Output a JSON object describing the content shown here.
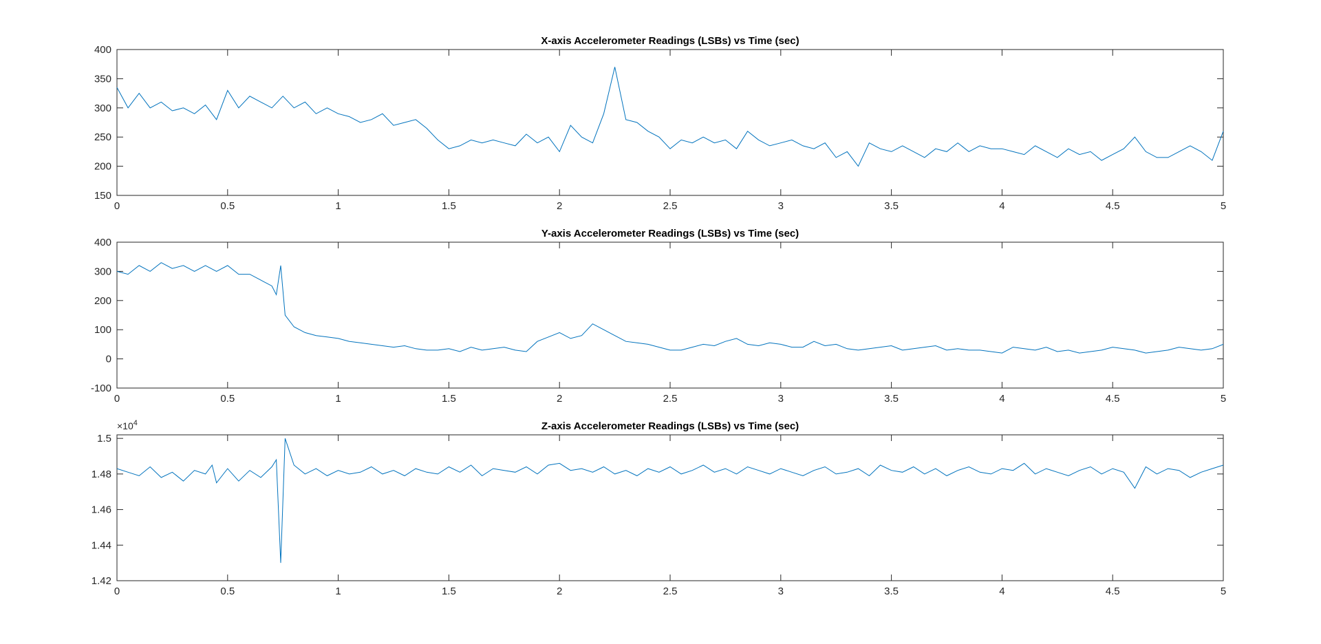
{
  "chart_data": [
    {
      "type": "line",
      "title": "X-axis Accelerometer Readings (LSBs) vs Time (sec)",
      "xlabel": "",
      "ylabel": "",
      "xlim": [
        0,
        5
      ],
      "ylim": [
        150,
        400
      ],
      "xticks": [
        0,
        0.5,
        1,
        1.5,
        2,
        2.5,
        3,
        3.5,
        4,
        4.5,
        5
      ],
      "xtick_labels": [
        "0",
        "0.5",
        "1",
        "1.5",
        "2",
        "2.5",
        "3",
        "3.5",
        "4",
        "4.5",
        "5"
      ],
      "yticks": [
        150,
        200,
        250,
        300,
        350,
        400
      ],
      "ytick_labels": [
        "150",
        "200",
        "250",
        "300",
        "350",
        "400"
      ],
      "grid": false,
      "color": "#0072BD",
      "series": [
        {
          "x": [
            0,
            0.05,
            0.1,
            0.15,
            0.2,
            0.25,
            0.3,
            0.35,
            0.4,
            0.45,
            0.5,
            0.55,
            0.6,
            0.65,
            0.7,
            0.75,
            0.8,
            0.85,
            0.9,
            0.95,
            1.0,
            1.05,
            1.1,
            1.15,
            1.2,
            1.25,
            1.3,
            1.35,
            1.4,
            1.45,
            1.5,
            1.55,
            1.6,
            1.65,
            1.7,
            1.75,
            1.8,
            1.85,
            1.9,
            1.95,
            2.0,
            2.05,
            2.1,
            2.15,
            2.2,
            2.25,
            2.3,
            2.35,
            2.4,
            2.45,
            2.5,
            2.55,
            2.6,
            2.65,
            2.7,
            2.75,
            2.8,
            2.85,
            2.9,
            2.95,
            3.0,
            3.05,
            3.1,
            3.15,
            3.2,
            3.25,
            3.3,
            3.35,
            3.4,
            3.45,
            3.5,
            3.55,
            3.6,
            3.65,
            3.7,
            3.75,
            3.8,
            3.85,
            3.9,
            3.95,
            4.0,
            4.05,
            4.1,
            4.15,
            4.2,
            4.25,
            4.3,
            4.35,
            4.4,
            4.45,
            4.5,
            4.55,
            4.6,
            4.65,
            4.7,
            4.75,
            4.8,
            4.85,
            4.9,
            4.95,
            5.0
          ],
          "values": [
            335,
            300,
            325,
            300,
            310,
            295,
            300,
            290,
            305,
            280,
            330,
            300,
            320,
            310,
            300,
            320,
            300,
            310,
            290,
            300,
            290,
            285,
            275,
            280,
            290,
            270,
            275,
            280,
            265,
            245,
            230,
            235,
            245,
            240,
            245,
            240,
            235,
            255,
            240,
            250,
            225,
            270,
            250,
            240,
            290,
            370,
            280,
            275,
            260,
            250,
            230,
            245,
            240,
            250,
            240,
            245,
            230,
            260,
            245,
            235,
            240,
            245,
            235,
            230,
            240,
            215,
            225,
            200,
            240,
            230,
            225,
            235,
            225,
            215,
            230,
            225,
            240,
            225,
            235,
            230,
            230,
            225,
            220,
            235,
            225,
            215,
            230,
            220,
            225,
            210,
            220,
            230,
            250,
            225,
            215,
            215,
            225,
            235,
            225,
            210,
            260
          ]
        }
      ]
    },
    {
      "type": "line",
      "title": "Y-axis Accelerometer Readings (LSBs) vs Time (sec)",
      "xlabel": "",
      "ylabel": "",
      "xlim": [
        0,
        5
      ],
      "ylim": [
        -100,
        400
      ],
      "xticks": [
        0,
        0.5,
        1,
        1.5,
        2,
        2.5,
        3,
        3.5,
        4,
        4.5,
        5
      ],
      "xtick_labels": [
        "0",
        "0.5",
        "1",
        "1.5",
        "2",
        "2.5",
        "3",
        "3.5",
        "4",
        "4.5",
        "5"
      ],
      "yticks": [
        -100,
        0,
        100,
        200,
        300,
        400
      ],
      "ytick_labels": [
        "-100",
        "0",
        "100",
        "200",
        "300",
        "400"
      ],
      "grid": false,
      "color": "#0072BD",
      "series": [
        {
          "x": [
            0,
            0.05,
            0.1,
            0.15,
            0.2,
            0.25,
            0.3,
            0.35,
            0.4,
            0.45,
            0.5,
            0.55,
            0.6,
            0.65,
            0.7,
            0.72,
            0.74,
            0.76,
            0.8,
            0.85,
            0.9,
            0.95,
            1.0,
            1.05,
            1.1,
            1.15,
            1.2,
            1.25,
            1.3,
            1.35,
            1.4,
            1.45,
            1.5,
            1.55,
            1.6,
            1.65,
            1.7,
            1.75,
            1.8,
            1.85,
            1.9,
            1.95,
            2.0,
            2.05,
            2.1,
            2.15,
            2.2,
            2.25,
            2.3,
            2.35,
            2.4,
            2.45,
            2.5,
            2.55,
            2.6,
            2.65,
            2.7,
            2.75,
            2.8,
            2.85,
            2.9,
            2.95,
            3.0,
            3.05,
            3.1,
            3.15,
            3.2,
            3.25,
            3.3,
            3.35,
            3.4,
            3.45,
            3.5,
            3.55,
            3.6,
            3.65,
            3.7,
            3.75,
            3.8,
            3.85,
            3.9,
            3.95,
            4.0,
            4.05,
            4.1,
            4.15,
            4.2,
            4.25,
            4.3,
            4.35,
            4.4,
            4.45,
            4.5,
            4.55,
            4.6,
            4.65,
            4.7,
            4.75,
            4.8,
            4.85,
            4.9,
            4.95,
            5.0
          ],
          "values": [
            300,
            290,
            320,
            300,
            330,
            310,
            320,
            300,
            320,
            300,
            320,
            290,
            290,
            270,
            250,
            220,
            320,
            150,
            110,
            90,
            80,
            75,
            70,
            60,
            55,
            50,
            45,
            40,
            45,
            35,
            30,
            30,
            35,
            25,
            40,
            30,
            35,
            40,
            30,
            25,
            60,
            75,
            90,
            70,
            80,
            120,
            100,
            80,
            60,
            55,
            50,
            40,
            30,
            30,
            40,
            50,
            45,
            60,
            70,
            50,
            45,
            55,
            50,
            40,
            40,
            60,
            45,
            50,
            35,
            30,
            35,
            40,
            45,
            30,
            35,
            40,
            45,
            30,
            35,
            30,
            30,
            25,
            20,
            40,
            35,
            30,
            40,
            25,
            30,
            20,
            25,
            30,
            40,
            35,
            30,
            20,
            25,
            30,
            40,
            35,
            30,
            35,
            50
          ]
        }
      ]
    },
    {
      "type": "line",
      "title": "Z-axis Accelerometer Readings (LSBs) vs Time (sec)",
      "xlabel": "",
      "ylabel": "",
      "xlim": [
        0,
        5
      ],
      "ylim": [
        14200,
        15020
      ],
      "exponent_label": "×10",
      "exponent_power": "4",
      "xticks": [
        0,
        0.5,
        1,
        1.5,
        2,
        2.5,
        3,
        3.5,
        4,
        4.5,
        5
      ],
      "xtick_labels": [
        "0",
        "0.5",
        "1",
        "1.5",
        "2",
        "2.5",
        "3",
        "3.5",
        "4",
        "4.5",
        "5"
      ],
      "yticks": [
        14200,
        14400,
        14600,
        14800,
        15000
      ],
      "ytick_labels": [
        "1.42",
        "1.44",
        "1.46",
        "1.48",
        "1.5"
      ],
      "grid": false,
      "color": "#0072BD",
      "series": [
        {
          "x": [
            0,
            0.05,
            0.1,
            0.15,
            0.2,
            0.25,
            0.3,
            0.35,
            0.4,
            0.43,
            0.45,
            0.5,
            0.55,
            0.6,
            0.65,
            0.7,
            0.72,
            0.74,
            0.76,
            0.8,
            0.85,
            0.9,
            0.95,
            1.0,
            1.05,
            1.1,
            1.15,
            1.2,
            1.25,
            1.3,
            1.35,
            1.4,
            1.45,
            1.5,
            1.55,
            1.6,
            1.65,
            1.7,
            1.75,
            1.8,
            1.85,
            1.9,
            1.95,
            2.0,
            2.05,
            2.1,
            2.15,
            2.2,
            2.25,
            2.3,
            2.35,
            2.4,
            2.45,
            2.5,
            2.55,
            2.6,
            2.65,
            2.7,
            2.75,
            2.8,
            2.85,
            2.9,
            2.95,
            3.0,
            3.05,
            3.1,
            3.15,
            3.2,
            3.25,
            3.3,
            3.35,
            3.4,
            3.45,
            3.5,
            3.55,
            3.6,
            3.65,
            3.7,
            3.75,
            3.8,
            3.85,
            3.9,
            3.95,
            4.0,
            4.05,
            4.1,
            4.15,
            4.2,
            4.25,
            4.3,
            4.35,
            4.4,
            4.45,
            4.5,
            4.55,
            4.6,
            4.65,
            4.7,
            4.75,
            4.8,
            4.85,
            4.9,
            4.95,
            5.0
          ],
          "values": [
            14830,
            14810,
            14790,
            14840,
            14780,
            14810,
            14760,
            14820,
            14800,
            14850,
            14750,
            14830,
            14760,
            14820,
            14780,
            14840,
            14880,
            14300,
            15000,
            14850,
            14800,
            14830,
            14790,
            14820,
            14800,
            14810,
            14840,
            14800,
            14820,
            14790,
            14830,
            14810,
            14800,
            14840,
            14810,
            14850,
            14790,
            14830,
            14820,
            14810,
            14840,
            14800,
            14850,
            14860,
            14820,
            14830,
            14810,
            14840,
            14800,
            14820,
            14790,
            14830,
            14810,
            14840,
            14800,
            14820,
            14850,
            14810,
            14830,
            14800,
            14840,
            14820,
            14800,
            14830,
            14810,
            14790,
            14820,
            14840,
            14800,
            14810,
            14830,
            14790,
            14850,
            14820,
            14810,
            14840,
            14800,
            14830,
            14790,
            14820,
            14840,
            14810,
            14800,
            14830,
            14820,
            14860,
            14800,
            14830,
            14810,
            14790,
            14820,
            14840,
            14800,
            14830,
            14810,
            14720,
            14840,
            14800,
            14830,
            14820,
            14780,
            14810,
            14830,
            14850
          ]
        }
      ]
    }
  ]
}
